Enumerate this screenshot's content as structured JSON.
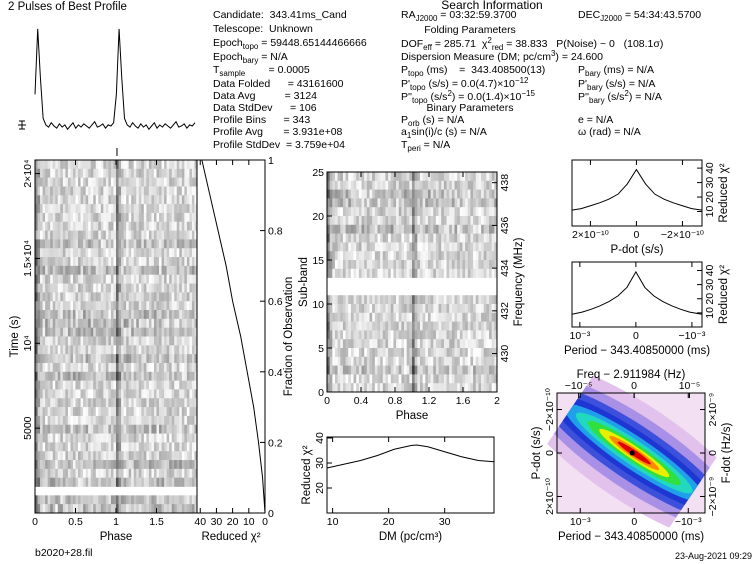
{
  "header": {
    "title": "Search Information"
  },
  "info": {
    "folding_title": "Folding Parameters",
    "binary_title": "Binary Parameters",
    "rows": [
      [
        "Candidate:  343.41ms_Cand"
      ],
      [
        "Telescope:  Unknown"
      ],
      [
        "Epoch",
        {
          "sub": "topo"
        },
        " = 59448.65144466666"
      ],
      [
        "Epoch",
        {
          "sub": "bary"
        },
        " = N/A"
      ],
      [
        "T",
        {
          "sub": "sample"
        },
        "        = 0.0005"
      ],
      [
        "Data Folded      = 43161600"
      ],
      [
        "Data Avg          = 3124"
      ],
      [
        "Data StdDev      = 106"
      ],
      [
        "Profile Bins      = 343"
      ],
      [
        "Profile Avg       = 3.931e+08"
      ],
      [
        "Profile StdDev  = 3.759e+04"
      ],
      [
        "RA",
        {
          "sub": "J2000"
        },
        " = 03:32:59.3700"
      ],
      [
        "DEC",
        {
          "sub": "J2000"
        },
        " = 54:34:43.5700"
      ],
      [
        "DOF",
        {
          "sub": "eff"
        },
        " = 285.71  χ",
        {
          "sup": "2"
        },
        {
          "sub": "red"
        },
        " = 38.833   P(Noise) ~ 0   (108.1σ)"
      ],
      [
        "Dispersion Measure (DM; pc/cm",
        {
          "sup": "3"
        },
        ") = 24.600"
      ],
      [
        "P",
        {
          "sub": "topo"
        },
        " (ms)    =  343.408500(13)"
      ],
      [
        "P'",
        {
          "sub": "topo"
        },
        " (s/s) = 0.0(4.7)×10",
        {
          "sup": "−12"
        }
      ],
      [
        "P''",
        {
          "sub": "topo"
        },
        " (s/s",
        {
          "sup": "2"
        },
        ") = 0.0(1.4)×10",
        {
          "sup": "−15"
        }
      ],
      [
        "P",
        {
          "sub": "orb"
        },
        " (s) = N/A"
      ],
      [
        "a",
        {
          "sub": "1"
        },
        "sin(i)/c (s) = N/A"
      ],
      [
        "T",
        {
          "sub": "peri"
        },
        " = N/A"
      ],
      [
        "P",
        {
          "sub": "bary"
        },
        " (ms) = N/A"
      ],
      [
        "P'",
        {
          "sub": "bary"
        },
        " (s/s) = N/A"
      ],
      [
        "P''",
        {
          "sub": "bary"
        },
        " (s/s",
        {
          "sup": "2"
        },
        ") = N/A"
      ],
      [
        "e = N/A"
      ],
      [
        "ω (rad) = N/A"
      ]
    ]
  },
  "footer": {
    "file": "b2020+28.fil",
    "date": "23-Aug-2021 09:29"
  },
  "chart_data": [
    {
      "type": "line",
      "title": "2 Pulses of Best Profile",
      "color": "#000000",
      "ylim": [
        0,
        110
      ],
      "values": [
        40,
        100,
        55,
        18,
        12,
        10,
        14,
        11,
        9,
        13,
        10,
        12,
        8,
        11,
        14,
        9,
        12,
        10,
        13,
        11,
        9,
        12,
        15,
        10,
        11,
        13,
        9,
        12,
        11,
        14,
        40,
        100,
        55,
        18,
        12,
        10,
        14,
        11,
        9,
        13,
        10,
        12,
        8,
        11,
        14,
        9,
        12,
        10,
        13,
        11,
        9,
        12,
        15,
        10,
        11,
        13,
        9,
        12,
        11,
        14
      ]
    },
    {
      "type": "image",
      "xlabel": "Phase",
      "ylabel": "Time (s)",
      "xlim": [
        0,
        2
      ],
      "xticks": [
        0,
        0.5,
        1,
        1.5
      ],
      "ylim": [
        0,
        20800
      ],
      "yticks": [
        5000,
        {
          "value": 10000,
          "label": "10⁴"
        },
        {
          "value": 15000,
          "label": "1.5×10⁴"
        },
        {
          "value": 20000,
          "label": "2×10⁴"
        }
      ]
    },
    {
      "type": "line",
      "orientation": "horizontal",
      "color": "#000000",
      "xlabel": "Reduced χ²",
      "ylabel": "Fraction of Observation",
      "xlim": [
        42,
        0
      ],
      "xticks": [
        40,
        30,
        20,
        10,
        0
      ],
      "ylim": [
        0,
        1
      ],
      "yticks": [
        0,
        0.2,
        0.4,
        0.6,
        0.8,
        1
      ],
      "y": [
        0,
        0.1,
        0.2,
        0.3,
        0.4,
        0.5,
        0.6,
        0.7,
        0.8,
        0.9,
        1
      ],
      "values": [
        0,
        1.5,
        4,
        7,
        11,
        15,
        20,
        24,
        29,
        34,
        39
      ]
    },
    {
      "type": "image",
      "xlabel": "Phase",
      "ylabel": "Sub-band",
      "y2label": "Frequency (MHz)",
      "xlim": [
        0,
        2
      ],
      "xticks": [
        0,
        0.4,
        0.8,
        1.2,
        1.6,
        2
      ],
      "ylim": [
        0,
        25
      ],
      "yticks": [
        0,
        5,
        10,
        15,
        20,
        25
      ],
      "y2lim": [
        428.2,
        438.5
      ],
      "y2ticks": [
        430,
        432,
        434,
        436,
        438
      ]
    },
    {
      "type": "line",
      "color": "#000000",
      "xlabel": "DM (pc/cm³)",
      "ylabel": "Reduced χ²",
      "xlim": [
        9,
        38.8
      ],
      "xticks": [
        10,
        20,
        30
      ],
      "ylim": [
        10,
        40.4
      ],
      "yticks": [
        20,
        30,
        40
      ],
      "x": [
        9,
        12,
        15,
        18,
        21,
        24,
        25,
        27,
        30,
        33,
        36,
        38.8
      ],
      "values": [
        28,
        29.5,
        31,
        33,
        35.5,
        37,
        37.2,
        36.5,
        34.5,
        32.5,
        31,
        30.5
      ]
    },
    {
      "type": "line",
      "color": "#000000",
      "xlabel": "P-dot (s/s)",
      "ylabel": "Reduced χ²",
      "xlim": [
        2.8e-10,
        -2.85e-10
      ],
      "xticks": [
        {
          "value": 2e-10,
          "label": "2×10⁻¹⁰"
        },
        0,
        {
          "value": -2e-10,
          "label": "−2×10⁻¹⁰"
        }
      ],
      "ylim": [
        0,
        45.6
      ],
      "yticks": [
        10,
        20,
        30,
        40
      ],
      "x": [
        2.8e-10,
        2.4e-10,
        2e-10,
        1.6e-10,
        1.2e-10,
        8e-11,
        4e-11,
        0,
        -4e-11,
        -8e-11,
        -1.2e-10,
        -1.6e-10,
        -2e-10,
        -2.4e-10,
        -2.85e-10
      ],
      "values": [
        11,
        12,
        14,
        16,
        18.5,
        22,
        29,
        39,
        29,
        22,
        18.5,
        16,
        14,
        12,
        11
      ]
    },
    {
      "type": "line",
      "color": "#000000",
      "xlabel": "Period − 343.40850000 (ms)",
      "ylabel": "Reduced χ²",
      "xlim": [
        0.00114,
        -0.00118
      ],
      "xticks": [
        {
          "value": 0.001,
          "label": "10⁻³"
        },
        0,
        {
          "value": -0.001,
          "label": "−10⁻³"
        }
      ],
      "ylim": [
        0,
        46
      ],
      "yticks": [
        10,
        20,
        30,
        40
      ],
      "x": [
        0.00114,
        0.00096,
        0.0008,
        0.00064,
        0.00048,
        0.00032,
        0.00016,
        0,
        -0.00016,
        -0.00032,
        -0.00048,
        -0.00064,
        -0.0008,
        -0.00096,
        -0.00118
      ],
      "values": [
        9,
        10.5,
        12.5,
        15,
        18,
        22,
        28,
        39,
        28,
        22,
        18,
        15,
        12.5,
        10.5,
        9
      ]
    },
    {
      "type": "contour",
      "xlabel": "Period − 343.40850000 (ms)",
      "ylabel": "P-dot (s/s)",
      "x2label": "Freq − 2.911984 (Hz)",
      "y2label": "F-dot (Hz/s)",
      "xlim": [
        0.00143,
        -0.00131
      ],
      "xticks": [
        {
          "value": 0.001,
          "label": "10⁻³"
        },
        0,
        {
          "value": -0.001,
          "label": "−10⁻³"
        }
      ],
      "x2lim": [
        -1.39e-05,
        1.28e-05
      ],
      "x2ticks": [
        {
          "value": -1e-05,
          "label": "−10⁻⁵"
        },
        0,
        {
          "value": 1e-05,
          "label": "10⁻⁵"
        }
      ],
      "ylim": [
        2.76e-10,
        -2.76e-10
      ],
      "yticks": [
        {
          "value": 2e-10,
          "label": "2×10⁻¹⁰"
        },
        0,
        {
          "value": -2e-10,
          "label": "−2×10⁻¹⁰"
        }
      ],
      "y2lim": [
        -2.76e-09,
        2.76e-09
      ],
      "y2ticks": [
        {
          "value": -2e-09,
          "label": "−2×10⁻⁹"
        },
        0,
        {
          "value": 2e-09,
          "label": "2×10⁻⁹"
        }
      ]
    }
  ]
}
